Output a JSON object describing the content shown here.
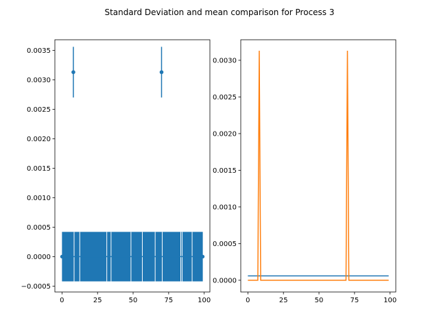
{
  "chart_data": {
    "suptitle": "Standard Deviation and mean comparison for Process 3",
    "colors": {
      "blue": "#1f77b4",
      "orange": "#ff7f0e"
    },
    "panels": [
      {
        "type": "errorbar",
        "xlim": [
          -5,
          104
        ],
        "ylim": [
          -0.0006,
          0.00368
        ],
        "xticks": [
          0,
          25,
          50,
          75,
          100
        ],
        "yticks": [
          -0.0005,
          0.0,
          0.0005,
          0.001,
          0.0015,
          0.002,
          0.0025,
          0.003,
          0.0035
        ],
        "xtick_labels": [
          "0",
          "25",
          "50",
          "75",
          "100"
        ],
        "ytick_labels": [
          "−0.0005",
          "0.0000",
          "0.0005",
          "0.0010",
          "0.0015",
          "0.0020",
          "0.0025",
          "0.0030",
          "0.0035"
        ],
        "series": {
          "x_start": 0,
          "x_end": 99,
          "base_mean": 0.0,
          "base_std": 0.00042,
          "spikes": [
            {
              "x": 8,
              "mean": 0.00313,
              "std": 0.00043
            },
            {
              "x": 70,
              "mean": 0.00313,
              "std": 0.00043
            }
          ],
          "white_gap_x": [
            8,
            12,
            31,
            34,
            48,
            56,
            65,
            70,
            83,
            84,
            91
          ]
        }
      },
      {
        "type": "line",
        "xlim": [
          -5,
          104
        ],
        "ylim": [
          -0.00016,
          0.00328
        ],
        "xticks": [
          0,
          25,
          50,
          75,
          100
        ],
        "yticks": [
          0.0,
          0.0005,
          0.001,
          0.0015,
          0.002,
          0.0025,
          0.003
        ],
        "xtick_labels": [
          "0",
          "25",
          "50",
          "75",
          "100"
        ],
        "ytick_labels": [
          "0.0000",
          "0.0005",
          "0.0010",
          "0.0015",
          "0.0020",
          "0.0025",
          "0.0030"
        ],
        "series": [
          {
            "name": "",
            "color": "#1f77b4",
            "x": [
              0,
              99
            ],
            "y": [
              6e-05,
              6e-05
            ]
          },
          {
            "name": "",
            "color": "#ff7f0e",
            "x": [
              0,
              7,
              8,
              9,
              69,
              70,
              71,
              99
            ],
            "y": [
              0,
              0,
              0.00313,
              0,
              0,
              0.00313,
              0,
              0
            ]
          }
        ]
      }
    ]
  }
}
